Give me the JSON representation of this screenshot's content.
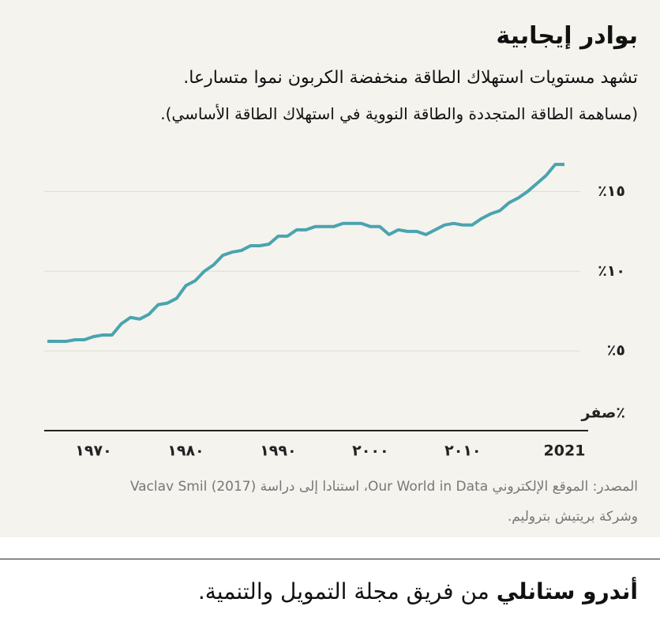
{
  "chart_data": {
    "type": "line",
    "title": "بوادر إيجابية",
    "subtitle": [
      "تشهد مستويات استهلاك الطاقة منخفضة الكربون نموا متسارعا.",
      "(مساهمة الطاقة المتجددة والطاقة النووية في استهلاك الطاقة الأساسي)."
    ],
    "source": [
      "المصدر: الموقع الإلكتروني Our World in Data، استنادا إلى دراسة Vaclav Smil (2017)",
      "وشركة بريتيش بتروليم."
    ],
    "x": [
      1965,
      1966,
      1967,
      1968,
      1969,
      1970,
      1971,
      1972,
      1973,
      1974,
      1975,
      1976,
      1977,
      1978,
      1979,
      1980,
      1981,
      1982,
      1983,
      1984,
      1985,
      1986,
      1987,
      1988,
      1989,
      1990,
      1991,
      1992,
      1993,
      1994,
      1995,
      1996,
      1997,
      1998,
      1999,
      2000,
      2001,
      2002,
      2003,
      2004,
      2005,
      2006,
      2007,
      2008,
      2009,
      2010,
      2011,
      2012,
      2013,
      2014,
      2015,
      2016,
      2017,
      2018,
      2019,
      2020,
      2021
    ],
    "series": [
      {
        "color": "#4ba3b0",
        "values": [
          5.6,
          5.6,
          5.6,
          5.7,
          5.7,
          5.9,
          6.0,
          6.0,
          6.7,
          7.1,
          7.0,
          7.3,
          7.9,
          8.0,
          8.3,
          9.1,
          9.4,
          10.0,
          10.4,
          11.0,
          11.2,
          11.3,
          11.6,
          11.6,
          11.7,
          12.2,
          12.2,
          12.6,
          12.6,
          12.8,
          12.8,
          12.8,
          13.0,
          13.0,
          13.0,
          12.8,
          12.8,
          12.3,
          12.6,
          12.5,
          12.5,
          12.3,
          12.6,
          12.9,
          13.0,
          12.9,
          12.9,
          13.3,
          13.6,
          13.8,
          14.3,
          14.6,
          15.0,
          15.5,
          16.0,
          16.7,
          16.7
        ]
      }
    ],
    "xlim": [
      1965,
      2021
    ],
    "xticks": [
      {
        "value": 1970,
        "label": "١٩٧٠"
      },
      {
        "value": 1980,
        "label": "١٩٨٠"
      },
      {
        "value": 1990,
        "label": "١٩٩٠"
      },
      {
        "value": 2000,
        "label": "٢٠٠٠"
      },
      {
        "value": 2010,
        "label": "٢٠١٠"
      },
      {
        "value": 2021,
        "label": "2021"
      }
    ],
    "ylim": [
      0,
      17.5
    ],
    "yticks": [
      {
        "value": 0,
        "label": "صفر٪"
      },
      {
        "value": 5,
        "label": "٪٥"
      },
      {
        "value": 10,
        "label": "٪١٠"
      },
      {
        "value": 15,
        "label": "٪١٥"
      }
    ],
    "grid": true
  },
  "byline": {
    "name": "أندرو ستانلي",
    "rest": "من فريق مجلة التمويل والتنمية."
  }
}
